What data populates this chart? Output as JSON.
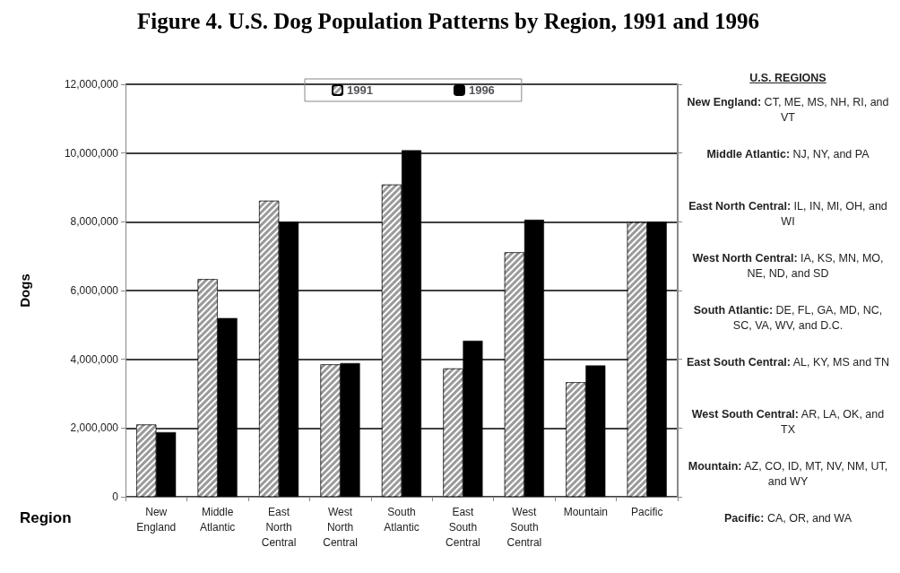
{
  "chart_data": {
    "type": "bar",
    "title": "Figure 4.  U.S. Dog Population Patterns by Region, 1991 and 1996",
    "xlabel": "Region",
    "ylabel": "Dogs",
    "categories": [
      "New England",
      "Middle Atlantic",
      "East North Central",
      "West North Central",
      "South Atlantic",
      "East South Central",
      "West South Central",
      "Mountain",
      "Pacific"
    ],
    "series": [
      {
        "name": "1991",
        "color": "#9a9a9a",
        "values": [
          2100000,
          6330000,
          8610000,
          3850000,
          9080000,
          3730000,
          7110000,
          3330000,
          7980000
        ]
      },
      {
        "name": "1996",
        "color": "#000000",
        "values": [
          1880000,
          5200000,
          8000000,
          3890000,
          10080000,
          4540000,
          8060000,
          3820000,
          8000000
        ]
      }
    ],
    "ylim": [
      0,
      12000000
    ],
    "yticks": [
      {
        "value": 0,
        "label": "0"
      },
      {
        "value": 2000000,
        "label": "2,000,000"
      },
      {
        "value": 4000000,
        "label": "4,000,000"
      },
      {
        "value": 6000000,
        "label": "6,000,000"
      },
      {
        "value": 8000000,
        "label": "8,000,000"
      },
      {
        "value": 10000000,
        "label": "10,000,000"
      },
      {
        "value": 12000000,
        "label": "12,000,000"
      }
    ],
    "grid": "y",
    "legend": "top",
    "annotations": [
      "U.S. REGIONS",
      "New England:   CT, ME, MS, NH, RI, and VT",
      "Middle Atlantic:   NJ, NY, and PA",
      "East North Central:   IL, IN, MI, OH, and WI",
      "West North Central:   IA, KS, MN, MO, NE, ND, and SD",
      "South Atlantic:   DE, FL, GA, MD, NC, SC, VA,  WV, and D.C.",
      "East South Central:   AL, KY, MS and TN",
      "West South Central:   AR, LA, OK, and TX",
      "Mountain:   AZ, CO, ID, MT, NV, NM, UT, and WY",
      "Pacific:   CA, OR, and WA"
    ]
  }
}
